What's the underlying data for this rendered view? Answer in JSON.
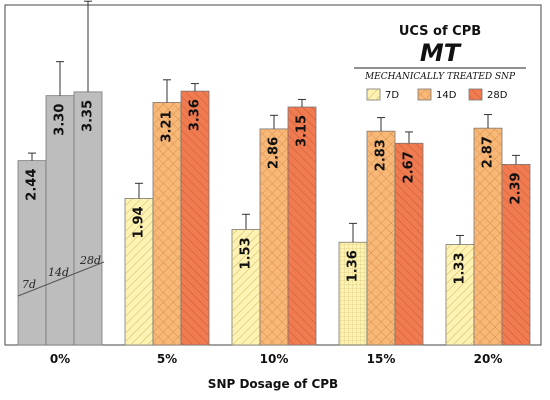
{
  "chart_data": {
    "type": "bar",
    "title": "UCS of CPB",
    "subtitle": "MT",
    "subtitle_caption": "MECHANICALLY TREATED SNP",
    "xlabel": "SNP Dosage of CPB",
    "ylabel": "",
    "ylim": [
      0,
      4.5
    ],
    "grid": false,
    "legend_position": "top-right",
    "categories": [
      "0%",
      "5%",
      "10%",
      "15%",
      "20%"
    ],
    "series": [
      {
        "name": "7D",
        "values": [
          2.44,
          1.94,
          1.53,
          1.36,
          1.33
        ],
        "errors": [
          0.1,
          0.2,
          0.2,
          0.25,
          0.12
        ],
        "color": "#fff2b3",
        "pattern": "diagonal"
      },
      {
        "name": "14D",
        "values": [
          3.3,
          3.21,
          2.86,
          2.83,
          2.87
        ],
        "errors": [
          0.45,
          0.3,
          0.18,
          0.18,
          0.18
        ],
        "color": "#f8b978",
        "pattern": "crosshatch"
      },
      {
        "name": "28D",
        "values": [
          3.35,
          3.36,
          3.15,
          2.67,
          2.39
        ],
        "errors": [
          1.2,
          0.1,
          0.1,
          0.15,
          0.12
        ],
        "color": "#f07b50",
        "pattern": "hatch"
      }
    ],
    "control_group": {
      "category": "0%",
      "color": "#bdbdbd",
      "labels": [
        "7d",
        "14d",
        "28d"
      ]
    },
    "data_labels": [
      "2.44",
      "3.30",
      "3.35",
      "1.94",
      "3.21",
      "3.36",
      "1.53",
      "2.86",
      "3.15",
      "1.36",
      "2.83",
      "2.67",
      "1.33",
      "2.87",
      "2.39"
    ]
  }
}
